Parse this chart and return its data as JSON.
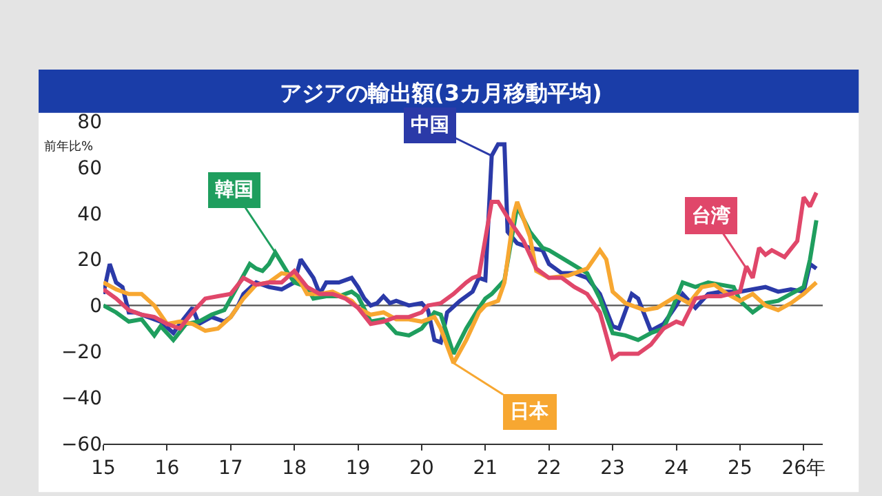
{
  "chart_data": {
    "type": "line",
    "title": "アジアの輸出額(3カ月移動平均)",
    "ylabel": "前年比%",
    "ylim": [
      -60,
      80
    ],
    "yticks": [
      -60,
      -40,
      -20,
      0,
      20,
      40,
      60,
      80
    ],
    "xlim": [
      15,
      26.3
    ],
    "xticks": [
      15,
      16,
      17,
      18,
      19,
      20,
      21,
      22,
      23,
      24,
      25,
      {
        "value": 26,
        "label": "26年"
      }
    ],
    "ref_lines": [
      {
        "axis": "y",
        "value": 0,
        "color": "#555555"
      }
    ],
    "grid": false,
    "legend": false,
    "marker": "none",
    "line_style": "solid",
    "series": [
      {
        "name": "中国",
        "color": "#2b3aa8",
        "x": [
          15.0,
          15.1,
          15.2,
          15.3,
          15.4,
          15.5,
          15.7,
          15.9,
          16.1,
          16.2,
          16.4,
          16.5,
          16.7,
          16.9,
          17.0,
          17.1,
          17.2,
          17.4,
          17.6,
          17.8,
          18.0,
          18.1,
          18.2,
          18.3,
          18.4,
          18.5,
          18.7,
          18.9,
          19.0,
          19.1,
          19.2,
          19.3,
          19.4,
          19.5,
          19.6,
          19.8,
          20.0,
          20.1,
          20.2,
          20.3,
          20.35,
          20.4,
          20.6,
          20.8,
          20.9,
          21.0,
          21.1,
          21.2,
          21.3,
          21.35,
          21.5,
          21.7,
          21.9,
          22.0,
          22.2,
          22.4,
          22.6,
          22.8,
          23.0,
          23.1,
          23.3,
          23.4,
          23.6,
          23.8,
          24.0,
          24.1,
          24.3,
          24.5,
          24.7,
          25.0,
          25.2,
          25.4,
          25.6,
          25.8,
          26.0,
          26.1,
          26.2
        ],
        "values": [
          5,
          18,
          10,
          8,
          -3,
          -3,
          -5,
          -7,
          -12,
          -8,
          -1,
          -8,
          -5,
          -7,
          -5,
          -1,
          5,
          10,
          8,
          7,
          10,
          20,
          16,
          12,
          5,
          10,
          10,
          12,
          8,
          3,
          0,
          1,
          4,
          1,
          2,
          0,
          1,
          -2,
          -15,
          -16,
          -10,
          -3,
          2,
          6,
          12,
          11,
          65,
          70,
          70,
          32,
          27,
          25,
          24,
          18,
          14,
          14,
          12,
          5,
          -9,
          -10,
          5,
          3,
          -11,
          -8,
          0,
          5,
          -1,
          5,
          6,
          6,
          7,
          8,
          6,
          7,
          6,
          18,
          16
        ]
      },
      {
        "name": "韓国",
        "color": "#1f9e5e",
        "x": [
          15.0,
          15.2,
          15.4,
          15.6,
          15.8,
          15.9,
          16.1,
          16.3,
          16.5,
          16.7,
          16.9,
          17.1,
          17.3,
          17.4,
          17.5,
          17.6,
          17.7,
          17.9,
          18.0,
          18.2,
          18.3,
          18.5,
          18.7,
          18.9,
          19.0,
          19.2,
          19.4,
          19.6,
          19.8,
          20.0,
          20.2,
          20.3,
          20.5,
          20.7,
          20.9,
          21.0,
          21.1,
          21.3,
          21.45,
          21.5,
          21.7,
          21.9,
          22.0,
          22.3,
          22.6,
          22.8,
          23.0,
          23.2,
          23.4,
          23.6,
          23.8,
          24.0,
          24.1,
          24.3,
          24.5,
          24.7,
          24.9,
          25.0,
          25.2,
          25.4,
          25.6,
          25.8,
          26.0,
          26.1,
          26.2
        ],
        "values": [
          0,
          -3,
          -7,
          -6,
          -13,
          -9,
          -15,
          -8,
          -7,
          -4,
          -2,
          8,
          18,
          16,
          15,
          18,
          23,
          14,
          10,
          8,
          3,
          4,
          4,
          6,
          4,
          -7,
          -6,
          -12,
          -13,
          -10,
          -3,
          -4,
          -21,
          -10,
          -1,
          3,
          5,
          11,
          35,
          43,
          32,
          25,
          24,
          19,
          14,
          3,
          -12,
          -13,
          -15,
          -12,
          -10,
          3,
          10,
          8,
          10,
          9,
          8,
          2,
          -3,
          1,
          2,
          5,
          8,
          20,
          37
        ]
      },
      {
        "name": "日本",
        "color": "#f7a731",
        "x": [
          15.0,
          15.2,
          15.4,
          15.6,
          15.8,
          16.0,
          16.2,
          16.4,
          16.6,
          16.8,
          17.0,
          17.2,
          17.4,
          17.6,
          17.8,
          18.0,
          18.1,
          18.2,
          18.4,
          18.6,
          18.9,
          19.0,
          19.2,
          19.4,
          19.6,
          19.8,
          20.0,
          20.2,
          20.3,
          20.5,
          20.7,
          20.9,
          21.0,
          21.2,
          21.3,
          21.45,
          21.5,
          21.7,
          21.8,
          22.0,
          22.3,
          22.6,
          22.8,
          22.9,
          23.0,
          23.2,
          23.5,
          23.7,
          24.0,
          24.2,
          24.4,
          24.6,
          24.8,
          25.0,
          25.2,
          25.4,
          25.6,
          25.8,
          26.0,
          26.2
        ],
        "values": [
          10,
          7,
          5,
          5,
          0,
          -8,
          -7,
          -8,
          -11,
          -10,
          -5,
          3,
          9,
          10,
          14,
          13,
          10,
          5,
          5,
          6,
          2,
          -1,
          -4,
          -3,
          -6,
          -6,
          -7,
          -5,
          -10,
          -25,
          -15,
          -3,
          0,
          2,
          10,
          40,
          45,
          30,
          15,
          12,
          13,
          16,
          24,
          20,
          6,
          1,
          -2,
          -1,
          4,
          1,
          8,
          9,
          5,
          2,
          5,
          0,
          -2,
          1,
          5,
          10
        ]
      },
      {
        "name": "台湾",
        "color": "#e0476a",
        "x": [
          15.0,
          15.2,
          15.4,
          15.6,
          15.8,
          16.0,
          16.2,
          16.4,
          16.6,
          16.8,
          17.0,
          17.2,
          17.4,
          17.6,
          17.8,
          18.0,
          18.2,
          18.4,
          18.6,
          18.8,
          19.0,
          19.2,
          19.4,
          19.6,
          19.8,
          20.0,
          20.1,
          20.3,
          20.5,
          20.7,
          20.8,
          20.9,
          21.1,
          21.2,
          21.4,
          21.6,
          21.8,
          22.0,
          22.2,
          22.4,
          22.6,
          22.8,
          23.0,
          23.1,
          23.4,
          23.6,
          23.8,
          24.0,
          24.1,
          24.3,
          24.5,
          24.7,
          25.0,
          25.1,
          25.2,
          25.3,
          25.4,
          25.5,
          25.7,
          25.9,
          26.0,
          26.1,
          26.2
        ],
        "values": [
          7,
          3,
          -2,
          -4,
          -5,
          -8,
          -10,
          -3,
          3,
          4,
          5,
          12,
          9,
          10,
          10,
          15,
          8,
          5,
          5,
          3,
          -1,
          -8,
          -7,
          -5,
          -5,
          -3,
          0,
          1,
          5,
          10,
          12,
          13,
          45,
          45,
          36,
          28,
          16,
          12,
          12,
          8,
          5,
          -3,
          -23,
          -21,
          -21,
          -17,
          -10,
          -7,
          -8,
          3,
          4,
          4,
          6,
          17,
          12,
          25,
          22,
          24,
          21,
          28,
          47,
          43,
          49
        ]
      }
    ]
  }
}
